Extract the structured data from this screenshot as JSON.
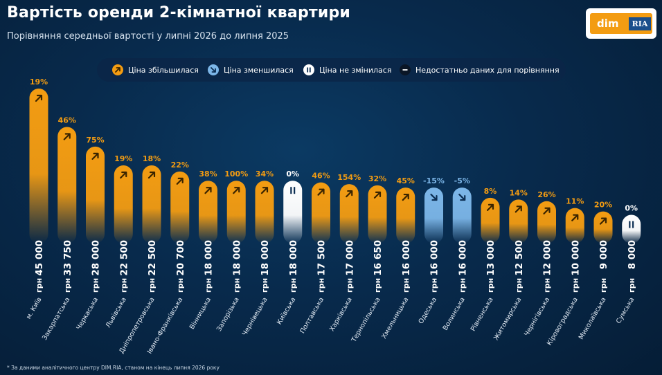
{
  "header": {
    "title": "Вартість оренди 2-кімнатної квартири",
    "subtitle": "Порівняння середньої вартості у липні 2026 до липня 2025"
  },
  "logo": {
    "left": "dim",
    "right": "RIA"
  },
  "legend": [
    {
      "label": "Ціна збільшилася",
      "status": "up",
      "icon": "arrow-up-right-icon"
    },
    {
      "label": "Ціна зменшилася",
      "status": "down",
      "icon": "arrow-down-right-icon"
    },
    {
      "label": "Ціна не змінилася",
      "status": "same",
      "icon": "pause-icon"
    },
    {
      "label": "Недостатньо даних для порівняння",
      "status": "na",
      "icon": "minus-icon"
    }
  ],
  "colors": {
    "up": "#f39c12",
    "down": "#7cb6e8",
    "same": "#ffffff",
    "na": "#0a1626"
  },
  "footnote": "* За даними аналітичного центру DIM.RIA, станом на кінець липня 2026 року",
  "chart_data": {
    "type": "bar",
    "unit": "грн",
    "categories": [
      "м. Київ",
      "Закарпатська",
      "Черкаська",
      "Львівська",
      "Дніпропетровська",
      "Івано-Франківська",
      "Вінницька",
      "Запорізька",
      "Чернівецька",
      "Київська",
      "Полтавська",
      "Харківська",
      "Тернопільська",
      "Хмельницька",
      "Одеська",
      "Волинська",
      "Рівненська",
      "Житомирська",
      "Чернігівська",
      "Кіровоградська",
      "Миколаївська",
      "Сумська"
    ],
    "values": [
      45000,
      33750,
      28000,
      22500,
      22500,
      20700,
      18000,
      18000,
      18000,
      18000,
      17500,
      17000,
      16650,
      16000,
      16000,
      16000,
      13000,
      12500,
      12000,
      10000,
      9000,
      8000
    ],
    "value_labels": [
      "45 000",
      "33 750",
      "28 000",
      "22 500",
      "22 500",
      "20 700",
      "18 000",
      "18 000",
      "18 000",
      "18 000",
      "17 500",
      "17 000",
      "16 650",
      "16 000",
      "16 000",
      "16 000",
      "13 000",
      "12 500",
      "12 000",
      "10 000",
      "9 000",
      "8 000"
    ],
    "changes": [
      "19%",
      "46%",
      "75%",
      "19%",
      "18%",
      "22%",
      "38%",
      "100%",
      "34%",
      "0%",
      "46%",
      "154%",
      "32%",
      "45%",
      "-15%",
      "-5%",
      "8%",
      "14%",
      "26%",
      "11%",
      "20%",
      "0%"
    ],
    "status": [
      "up",
      "up",
      "up",
      "up",
      "up",
      "up",
      "up",
      "up",
      "up",
      "same",
      "up",
      "up",
      "up",
      "up",
      "down",
      "down",
      "up",
      "up",
      "up",
      "up",
      "up",
      "same"
    ]
  }
}
